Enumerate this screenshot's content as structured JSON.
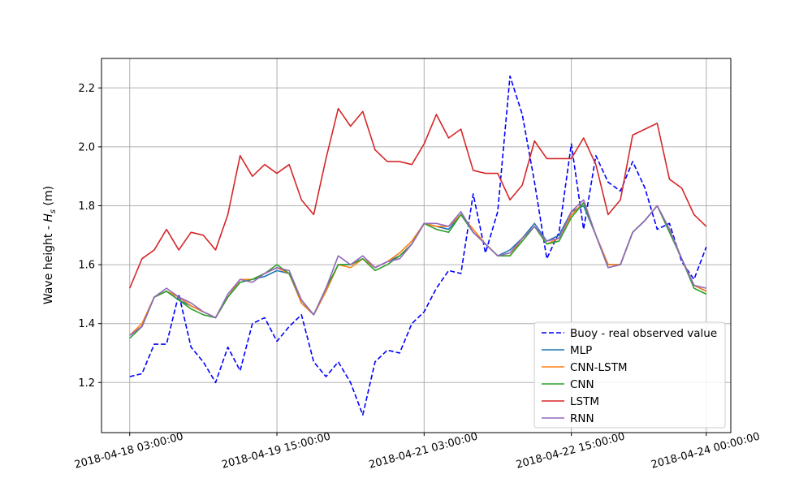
{
  "chart_data": {
    "type": "line",
    "title": "",
    "xlabel": "",
    "ylabel": "Wave height - H_s (m)",
    "ylabel_parts": {
      "prefix": "Wave height - ",
      "symbol": "H",
      "subscript": "s",
      "suffix": " (m)"
    },
    "x_ticks": [
      "2018-04-18 03:00:00",
      "2018-04-19 15:00:00",
      "2018-04-21 03:00:00",
      "2018-04-22 15:00:00",
      "2018-04-24 00:00:00"
    ],
    "x_tick_index": [
      0,
      12,
      24,
      36,
      47
    ],
    "y_ticks": [
      "1.2",
      "1.4",
      "1.6",
      "1.8",
      "2.0",
      "2.2"
    ],
    "y_tick_values": [
      1.2,
      1.4,
      1.6,
      1.8,
      2.0,
      2.2
    ],
    "ylim": [
      1.03,
      2.3
    ],
    "xlim_index": [
      -2.3,
      49.0
    ],
    "grid": true,
    "legend_position": "lower right",
    "series": [
      {
        "name": "Buoy - real observed value",
        "color": "#0000ff",
        "dashed": true,
        "values": [
          1.22,
          1.23,
          1.33,
          1.33,
          1.5,
          1.32,
          1.27,
          1.2,
          1.32,
          1.24,
          1.4,
          1.42,
          1.34,
          1.39,
          1.43,
          1.27,
          1.22,
          1.27,
          1.2,
          1.09,
          1.27,
          1.31,
          1.3,
          1.4,
          1.44,
          1.52,
          1.58,
          1.57,
          1.84,
          1.64,
          1.78,
          2.24,
          2.11,
          1.88,
          1.62,
          1.71,
          2.01,
          1.72,
          1.97,
          1.88,
          1.85,
          1.95,
          1.86,
          1.72,
          1.74,
          1.61,
          1.55,
          1.66
        ]
      },
      {
        "name": "MLP",
        "color": "#1f77b4",
        "dashed": false,
        "values": [
          1.36,
          1.39,
          1.49,
          1.51,
          1.48,
          1.46,
          1.44,
          1.42,
          1.49,
          1.54,
          1.55,
          1.56,
          1.58,
          1.57,
          1.47,
          1.43,
          1.51,
          1.6,
          1.6,
          1.62,
          1.59,
          1.61,
          1.63,
          1.67,
          1.74,
          1.73,
          1.72,
          1.77,
          1.71,
          1.67,
          1.63,
          1.65,
          1.69,
          1.74,
          1.68,
          1.7,
          1.78,
          1.8,
          1.7,
          1.6,
          1.6,
          1.71,
          1.75,
          1.8,
          1.72,
          1.62,
          1.53,
          1.51
        ]
      },
      {
        "name": "CNN-LSTM",
        "color": "#ff7f0e",
        "dashed": false,
        "values": [
          1.36,
          1.4,
          1.49,
          1.51,
          1.49,
          1.46,
          1.44,
          1.42,
          1.49,
          1.55,
          1.55,
          1.57,
          1.59,
          1.57,
          1.47,
          1.43,
          1.51,
          1.6,
          1.59,
          1.62,
          1.59,
          1.61,
          1.64,
          1.68,
          1.74,
          1.73,
          1.73,
          1.77,
          1.72,
          1.67,
          1.63,
          1.63,
          1.69,
          1.73,
          1.67,
          1.69,
          1.77,
          1.81,
          1.7,
          1.6,
          1.6,
          1.71,
          1.75,
          1.8,
          1.72,
          1.62,
          1.53,
          1.51
        ]
      },
      {
        "name": "CNN",
        "color": "#2ca02c",
        "dashed": false,
        "values": [
          1.35,
          1.39,
          1.49,
          1.51,
          1.48,
          1.45,
          1.43,
          1.42,
          1.49,
          1.54,
          1.55,
          1.57,
          1.6,
          1.57,
          1.48,
          1.43,
          1.52,
          1.6,
          1.6,
          1.62,
          1.58,
          1.6,
          1.63,
          1.67,
          1.74,
          1.72,
          1.71,
          1.77,
          1.71,
          1.67,
          1.63,
          1.63,
          1.68,
          1.73,
          1.67,
          1.68,
          1.76,
          1.81,
          1.7,
          1.59,
          1.6,
          1.71,
          1.75,
          1.8,
          1.71,
          1.62,
          1.52,
          1.5
        ]
      },
      {
        "name": "LSTM",
        "color": "#d62728",
        "dashed": false,
        "values": [
          1.52,
          1.62,
          1.65,
          1.72,
          1.65,
          1.71,
          1.7,
          1.65,
          1.77,
          1.97,
          1.9,
          1.94,
          1.91,
          1.94,
          1.82,
          1.77,
          1.96,
          2.13,
          2.07,
          2.12,
          1.99,
          1.95,
          1.95,
          1.94,
          2.01,
          2.11,
          2.03,
          2.06,
          1.92,
          1.91,
          1.91,
          1.82,
          1.87,
          2.02,
          1.96,
          1.96,
          1.96,
          2.03,
          1.94,
          1.77,
          1.82,
          2.04,
          2.06,
          2.08,
          1.89,
          1.86,
          1.77,
          1.73
        ]
      },
      {
        "name": "RNN",
        "color": "#9467bd",
        "dashed": false,
        "values": [
          1.36,
          1.39,
          1.49,
          1.52,
          1.49,
          1.47,
          1.44,
          1.42,
          1.5,
          1.55,
          1.54,
          1.57,
          1.59,
          1.58,
          1.48,
          1.43,
          1.52,
          1.63,
          1.6,
          1.63,
          1.59,
          1.61,
          1.62,
          1.67,
          1.74,
          1.74,
          1.73,
          1.78,
          1.71,
          1.67,
          1.63,
          1.64,
          1.69,
          1.73,
          1.68,
          1.69,
          1.78,
          1.82,
          1.7,
          1.59,
          1.6,
          1.71,
          1.75,
          1.8,
          1.72,
          1.62,
          1.53,
          1.52
        ]
      }
    ]
  }
}
